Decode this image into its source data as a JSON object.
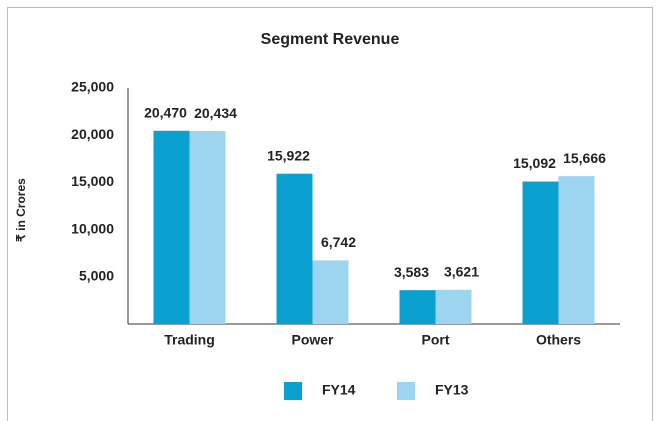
{
  "chart_data": {
    "type": "bar",
    "title": "Segment Revenue",
    "y_label": "₹ in Crores",
    "categories": [
      "Trading",
      "Power",
      "Port",
      "Others"
    ],
    "series": [
      {
        "name": "FY14",
        "color": "#0aa0cf",
        "values": [
          20470,
          15922,
          3583,
          15092
        ],
        "value_labels": [
          "20,470",
          "15,922",
          "3,583",
          "15,092"
        ]
      },
      {
        "name": "FY13",
        "color": "#9dd4ee",
        "values": [
          20434,
          6742,
          3621,
          15666
        ],
        "value_labels": [
          "20,434",
          "6,742",
          "3,621",
          "15,666"
        ]
      }
    ],
    "ylim": [
      0,
      25000
    ],
    "yticks": [
      {
        "value": 5000,
        "label": "5,000"
      },
      {
        "value": 10000,
        "label": "10,000"
      },
      {
        "value": 15000,
        "label": "15,000"
      },
      {
        "value": 20000,
        "label": "20,000"
      },
      {
        "value": 25000,
        "label": "25,000"
      }
    ],
    "grid": false,
    "legend": "bottom"
  }
}
